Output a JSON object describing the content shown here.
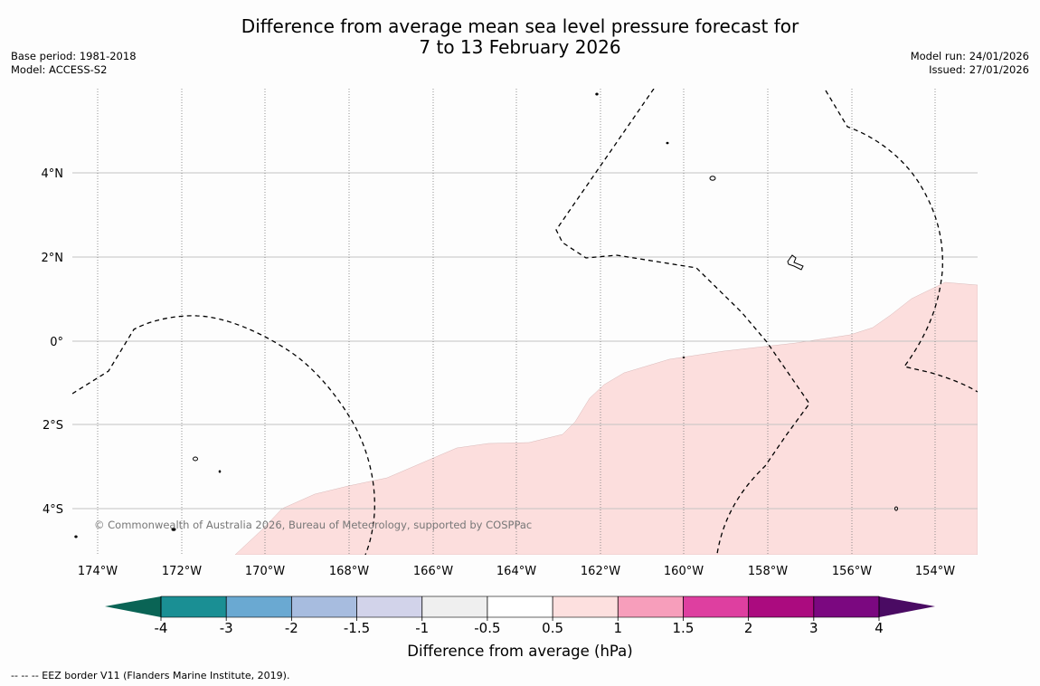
{
  "title": {
    "line1": "Difference from average mean sea level pressure forecast for",
    "line2": "7 to 13 February 2026"
  },
  "meta_left": {
    "base_period": "Base period: 1981-2018",
    "model": "Model: ACCESS-S2"
  },
  "meta_right": {
    "model_run": "Model run: 24/01/2026",
    "issued": "Issued: 27/01/2026"
  },
  "map": {
    "lat_labels": [
      "4°N",
      "2°N",
      "0°",
      "2°S",
      "4°S"
    ],
    "lon_labels": [
      "174°W",
      "172°W",
      "170°W",
      "168°W",
      "166°W",
      "164°W",
      "162°W",
      "160°W",
      "158°W",
      "156°W",
      "154°W"
    ],
    "copyright": "© Commonwealth of Australia 2026, Bureau of Meteorology, supported by COSPPac",
    "anomaly_fill_color": "#fcdedd"
  },
  "colorbar": {
    "label": "Difference from average (hPa)",
    "tick_labels": [
      "-4",
      "-3",
      "-2",
      "-1.5",
      "-1",
      "-0.5",
      "0.5",
      "1",
      "1.5",
      "2",
      "3",
      "4"
    ],
    "colors": [
      "#1a8f94",
      "#6aa9d2",
      "#a7bcdf",
      "#d2d3ea",
      "#efefef",
      "#ffffff",
      "#fde0df",
      "#f79ebb",
      "#de3fa0",
      "#ab0b7f",
      "#7b0880"
    ],
    "under_color": "#0a6455",
    "over_color": "#4a0b63"
  },
  "footnote": "--  --  -- EEZ border V11 (Flanders Marine Institute, 2019)."
}
